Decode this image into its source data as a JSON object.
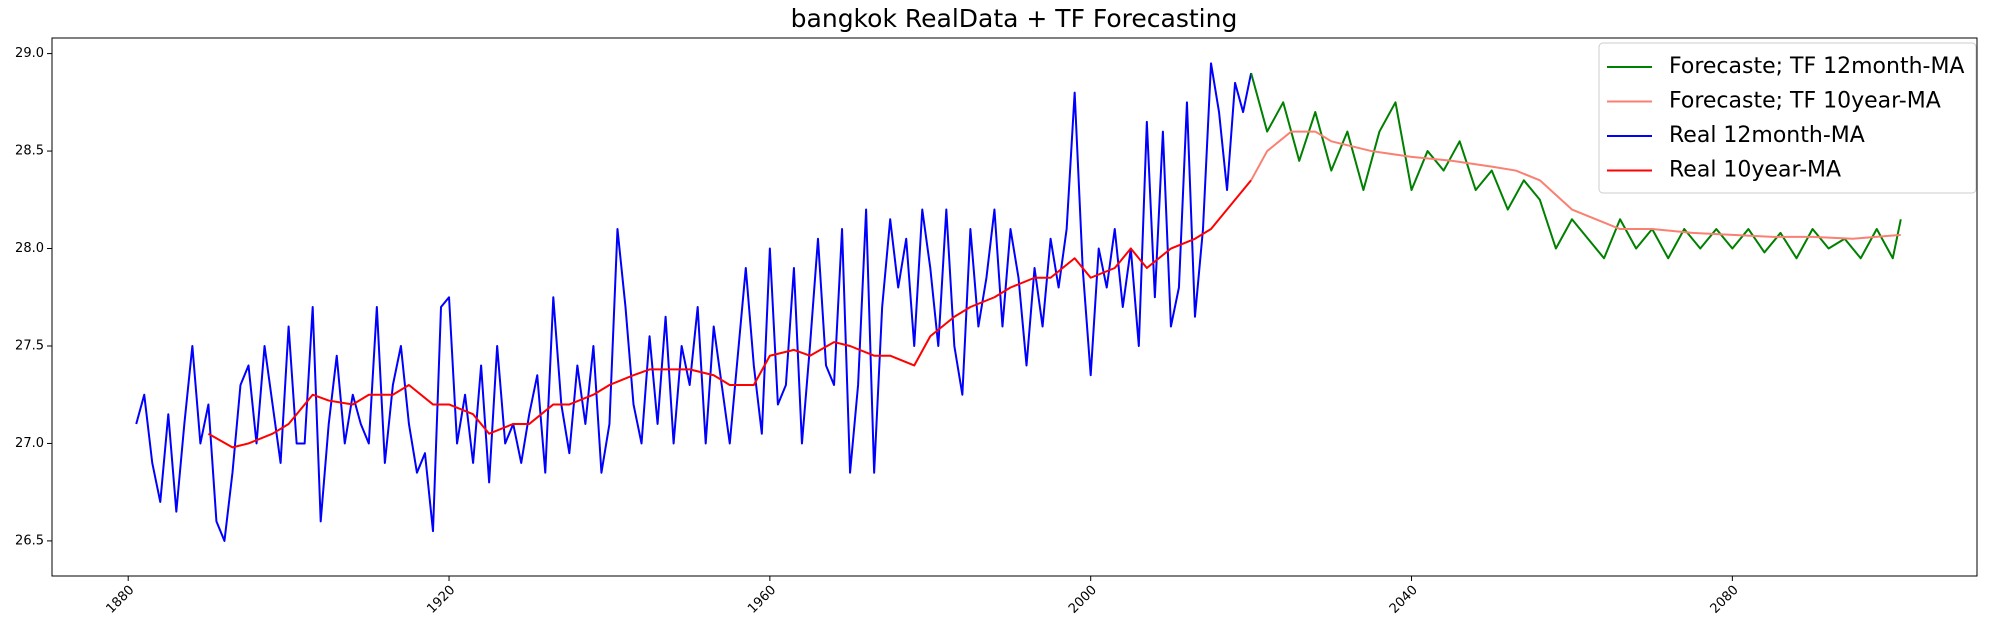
{
  "chart_data": {
    "type": "line",
    "title": "bangkok RealData + TF Forecasting",
    "xlim": [
      1870.5,
      2110.5
    ],
    "xticks": [
      1880,
      1920,
      1960,
      2000,
      2040,
      2080
    ],
    "ylim": [
      26.32,
      29.08
    ],
    "yticks": [
      26.5,
      {
        "value": 27,
        "label": "27.0"
      },
      27.5,
      {
        "value": 28,
        "label": "28.0"
      },
      28.5,
      {
        "value": 29,
        "label": "29.0"
      }
    ],
    "legend": "upper right",
    "series": [
      {
        "name": "Forecaste; TF 12month-MA",
        "color": "#008000",
        "x": [
          2020,
          2022,
          2024,
          2026,
          2028,
          2030,
          2032,
          2034,
          2036,
          2038,
          2040,
          2042,
          2044,
          2046,
          2048,
          2050,
          2052,
          2054,
          2056,
          2058,
          2060,
          2062,
          2064,
          2066,
          2068,
          2070,
          2072,
          2074,
          2076,
          2078,
          2080,
          2082,
          2084,
          2086,
          2088,
          2090,
          2092,
          2094,
          2096,
          2098,
          2100,
          2101
        ],
        "values": [
          28.9,
          28.6,
          28.75,
          28.45,
          28.7,
          28.4,
          28.6,
          28.3,
          28.6,
          28.75,
          28.3,
          28.5,
          28.4,
          28.55,
          28.3,
          28.4,
          28.2,
          28.35,
          28.25,
          28.0,
          28.15,
          28.05,
          27.95,
          28.15,
          28.0,
          28.1,
          27.95,
          28.1,
          28.0,
          28.1,
          28.0,
          28.1,
          27.98,
          28.08,
          27.95,
          28.1,
          28.0,
          28.05,
          27.95,
          28.1,
          27.95,
          28.15
        ]
      },
      {
        "name": "Forecaste; TF 10year-MA",
        "color": "#fa8072",
        "x": [
          2020,
          2022,
          2025,
          2028,
          2030,
          2035,
          2040,
          2045,
          2050,
          2053,
          2056,
          2060,
          2063,
          2066,
          2070,
          2075,
          2080,
          2085,
          2090,
          2095,
          2101
        ],
        "values": [
          28.35,
          28.5,
          28.6,
          28.6,
          28.55,
          28.5,
          28.47,
          28.45,
          28.42,
          28.4,
          28.35,
          28.2,
          28.15,
          28.1,
          28.1,
          28.08,
          28.07,
          28.06,
          28.06,
          28.05,
          28.07
        ]
      },
      {
        "name": "Real 12month-MA",
        "color": "#0000ff",
        "x": [
          1881,
          1882,
          1883,
          1884,
          1885,
          1886,
          1887,
          1888,
          1889,
          1890,
          1891,
          1892,
          1893,
          1894,
          1895,
          1896,
          1897,
          1898,
          1899,
          1900,
          1901,
          1902,
          1903,
          1904,
          1905,
          1906,
          1907,
          1908,
          1909,
          1910,
          1911,
          1912,
          1913,
          1914,
          1915,
          1916,
          1917,
          1918,
          1919,
          1920,
          1921,
          1922,
          1923,
          1924,
          1925,
          1926,
          1927,
          1928,
          1929,
          1930,
          1931,
          1932,
          1933,
          1934,
          1935,
          1936,
          1937,
          1938,
          1939,
          1940,
          1941,
          1942,
          1943,
          1944,
          1945,
          1946,
          1947,
          1948,
          1949,
          1950,
          1951,
          1952,
          1953,
          1954,
          1955,
          1956,
          1957,
          1958,
          1959,
          1960,
          1961,
          1962,
          1963,
          1964,
          1965,
          1966,
          1967,
          1968,
          1969,
          1970,
          1971,
          1972,
          1973,
          1974,
          1975,
          1976,
          1977,
          1978,
          1979,
          1980,
          1981,
          1982,
          1983,
          1984,
          1985,
          1986,
          1987,
          1988,
          1989,
          1990,
          1991,
          1992,
          1993,
          1994,
          1995,
          1996,
          1997,
          1998,
          1999,
          2000,
          2001,
          2002,
          2003,
          2004,
          2005,
          2006,
          2007,
          2008,
          2009,
          2010,
          2011,
          2012,
          2013,
          2014,
          2015,
          2016,
          2017,
          2018,
          2019,
          2020
        ],
        "values": [
          27.1,
          27.25,
          26.9,
          26.7,
          27.15,
          26.65,
          27.1,
          27.5,
          27.0,
          27.2,
          26.6,
          26.5,
          26.85,
          27.3,
          27.4,
          27.0,
          27.5,
          27.2,
          26.9,
          27.6,
          27.0,
          27.0,
          27.7,
          26.6,
          27.1,
          27.45,
          27.0,
          27.25,
          27.1,
          27.0,
          27.7,
          26.9,
          27.3,
          27.5,
          27.1,
          26.85,
          26.95,
          26.55,
          27.7,
          27.75,
          27.0,
          27.25,
          26.9,
          27.4,
          26.8,
          27.5,
          27.0,
          27.1,
          26.9,
          27.15,
          27.35,
          26.85,
          27.75,
          27.2,
          26.95,
          27.4,
          27.1,
          27.5,
          26.85,
          27.1,
          28.1,
          27.7,
          27.2,
          27.0,
          27.55,
          27.1,
          27.65,
          27.0,
          27.5,
          27.3,
          27.7,
          27.0,
          27.6,
          27.3,
          27.0,
          27.45,
          27.9,
          27.4,
          27.05,
          28.0,
          27.2,
          27.3,
          27.9,
          27.0,
          27.5,
          28.05,
          27.4,
          27.3,
          28.1,
          26.85,
          27.3,
          28.2,
          26.85,
          27.7,
          28.15,
          27.8,
          28.05,
          27.5,
          28.2,
          27.9,
          27.5,
          28.2,
          27.5,
          27.25,
          28.1,
          27.6,
          27.85,
          28.2,
          27.6,
          28.1,
          27.85,
          27.4,
          27.9,
          27.6,
          28.05,
          27.8,
          28.1,
          28.8,
          27.9,
          27.35,
          28.0,
          27.8,
          28.1,
          27.7,
          28.0,
          27.5,
          28.65,
          27.75,
          28.6,
          27.6,
          27.8,
          28.75,
          27.65,
          28.1,
          28.95,
          28.7,
          28.3,
          28.85,
          28.7,
          28.9
        ]
      },
      {
        "name": "Real 10year-MA",
        "color": "#ff0000",
        "x": [
          1890,
          1893,
          1895,
          1898,
          1900,
          1903,
          1905,
          1908,
          1910,
          1913,
          1915,
          1918,
          1920,
          1923,
          1925,
          1928,
          1930,
          1933,
          1935,
          1938,
          1940,
          1943,
          1945,
          1948,
          1950,
          1953,
          1955,
          1958,
          1960,
          1963,
          1965,
          1968,
          1970,
          1973,
          1975,
          1978,
          1980,
          1983,
          1985,
          1988,
          1990,
          1993,
          1995,
          1998,
          2000,
          2003,
          2005,
          2007,
          2010,
          2013,
          2015,
          2017,
          2019,
          2020
        ],
        "values": [
          27.05,
          26.98,
          27.0,
          27.05,
          27.1,
          27.25,
          27.22,
          27.2,
          27.25,
          27.25,
          27.3,
          27.2,
          27.2,
          27.15,
          27.05,
          27.1,
          27.1,
          27.2,
          27.2,
          27.25,
          27.3,
          27.35,
          27.38,
          27.38,
          27.38,
          27.35,
          27.3,
          27.3,
          27.45,
          27.48,
          27.45,
          27.52,
          27.5,
          27.45,
          27.45,
          27.4,
          27.55,
          27.65,
          27.7,
          27.75,
          27.8,
          27.85,
          27.85,
          27.95,
          27.85,
          27.9,
          28.0,
          27.9,
          28.0,
          28.05,
          28.1,
          28.2,
          28.3,
          28.35
        ]
      }
    ]
  }
}
